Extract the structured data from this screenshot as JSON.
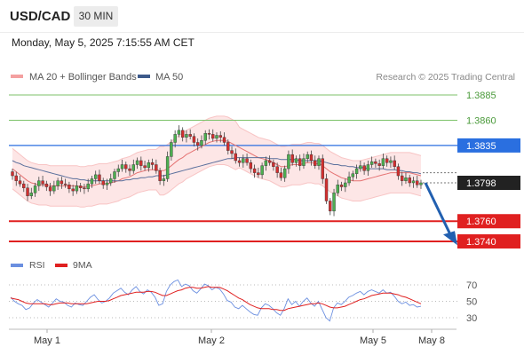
{
  "header": {
    "symbol": "USD/CAD",
    "timeframe": "30 MIN",
    "datetime": "Monday, May 5, 2025 7:15:55 AM CET"
  },
  "colors": {
    "bollinger": "#f4a0a0",
    "bollinger_fill": "#fde6e6",
    "ma20": "#e57373",
    "ma50": "#5a6f9c",
    "resistance_green": "#7dc26a",
    "pivot_blue": "#2a6fe0",
    "support_red": "#e02020",
    "candle_up": "#4caf50",
    "candle_down": "#d32f2f",
    "arrow": "#2260b0",
    "rsi": "#6b8fe0",
    "rsi_ma": "#e02020"
  },
  "chart_data": [
    {
      "type": "candlestick",
      "legend": [
        "MA 20 + Bollinger Bands",
        "MA 50"
      ],
      "watermark": "Research © 2025 Trading Central",
      "x_ticks": [
        "May 1",
        "May 2",
        "May 5",
        "May 8"
      ],
      "current_price": 1.3798,
      "levels": [
        {
          "value": 1.3885,
          "label": "1.3885",
          "kind": "resistance"
        },
        {
          "value": 1.386,
          "label": "1.3860",
          "kind": "resistance"
        },
        {
          "value": 1.3835,
          "label": "1.3835",
          "kind": "pivot"
        },
        {
          "value": 1.376,
          "label": "1.3760",
          "kind": "support"
        },
        {
          "value": 1.374,
          "label": "1.3740",
          "kind": "support"
        }
      ],
      "current_label": "1.3798",
      "forecast": {
        "from": 1.3798,
        "to": 1.3745,
        "direction": "down"
      },
      "y_range": [
        1.3738,
        1.3888
      ],
      "closes": [
        1.3805,
        1.38,
        1.3797,
        1.3793,
        1.3785,
        1.3788,
        1.3795,
        1.38,
        1.3797,
        1.3794,
        1.379,
        1.3795,
        1.38,
        1.3797,
        1.3796,
        1.3792,
        1.379,
        1.3795,
        1.3793,
        1.3792,
        1.3797,
        1.3802,
        1.3806,
        1.38,
        1.3796,
        1.3798,
        1.3802,
        1.3809,
        1.3812,
        1.3816,
        1.3812,
        1.381,
        1.3816,
        1.382,
        1.3815,
        1.3813,
        1.3818,
        1.3816,
        1.381,
        1.38,
        1.3802,
        1.3824,
        1.3838,
        1.3846,
        1.385,
        1.3843,
        1.3846,
        1.3844,
        1.3838,
        1.3835,
        1.384,
        1.3847,
        1.3846,
        1.3842,
        1.3845,
        1.3843,
        1.3838,
        1.383,
        1.3827,
        1.382,
        1.3818,
        1.3822,
        1.3818,
        1.3812,
        1.3808,
        1.3806,
        1.3815,
        1.382,
        1.3818,
        1.3814,
        1.3808,
        1.3803,
        1.3812,
        1.3826,
        1.3818,
        1.3822,
        1.3815,
        1.3822,
        1.3826,
        1.382,
        1.3815,
        1.3822,
        1.3802,
        1.378,
        1.377,
        1.3788,
        1.3796,
        1.3794,
        1.3798,
        1.3804,
        1.3807,
        1.3812,
        1.3815,
        1.381,
        1.3816,
        1.3819,
        1.3817,
        1.3815,
        1.3822,
        1.3818,
        1.382,
        1.3814,
        1.3805,
        1.38,
        1.3803,
        1.3798,
        1.38,
        1.3796,
        1.3798
      ],
      "ma20": [
        1.3812,
        1.3809,
        1.3806,
        1.3803,
        1.38,
        1.3798,
        1.3797,
        1.3796,
        1.3796,
        1.3796,
        1.3795,
        1.3795,
        1.3795,
        1.3795,
        1.3795,
        1.3795,
        1.3795,
        1.3795,
        1.3794,
        1.3794,
        1.3795,
        1.3795,
        1.3796,
        1.3797,
        1.3797,
        1.3797,
        1.3798,
        1.3799,
        1.38,
        1.3802,
        1.3803,
        1.3804,
        1.3806,
        1.3808,
        1.3809,
        1.381,
        1.3811,
        1.3811,
        1.3811,
        1.381,
        1.381,
        1.3812,
        1.3815,
        1.3818,
        1.3821,
        1.3823,
        1.3826,
        1.3828,
        1.383,
        1.3832,
        1.3834,
        1.3836,
        1.3838,
        1.3839,
        1.384,
        1.384,
        1.384,
        1.3839,
        1.3837,
        1.3835,
        1.3833,
        1.3831,
        1.3829,
        1.3827,
        1.3825,
        1.3823,
        1.3822,
        1.3821,
        1.382,
        1.3818,
        1.3816,
        1.3814,
        1.3814,
        1.3815,
        1.3816,
        1.3816,
        1.3816,
        1.3817,
        1.3818,
        1.3818,
        1.3817,
        1.3817,
        1.3815,
        1.3812,
        1.3809,
        1.3807,
        1.3805,
        1.3803,
        1.3802,
        1.3801,
        1.38,
        1.38,
        1.38,
        1.3801,
        1.3802,
        1.3803,
        1.3804,
        1.3805,
        1.3806,
        1.3807,
        1.3808,
        1.3808,
        1.3808,
        1.3808,
        1.3808,
        1.3808,
        1.3807,
        1.3806,
        1.3805
      ],
      "ma50": [
        1.382,
        1.3818,
        1.3817,
        1.3815,
        1.3814,
        1.3813,
        1.3812,
        1.3811,
        1.381,
        1.3809,
        1.3808,
        1.3807,
        1.3806,
        1.3805,
        1.3804,
        1.3803,
        1.3802,
        1.3802,
        1.3801,
        1.3801,
        1.38,
        1.38,
        1.38,
        1.38,
        1.38,
        1.38,
        1.38,
        1.38,
        1.38,
        1.38,
        1.3801,
        1.3801,
        1.3802,
        1.3802,
        1.3803,
        1.3803,
        1.3804,
        1.3804,
        1.3805,
        1.3805,
        1.3805,
        1.3806,
        1.3807,
        1.3808,
        1.3809,
        1.381,
        1.3811,
        1.3812,
        1.3813,
        1.3814,
        1.3815,
        1.3816,
        1.3817,
        1.3818,
        1.3819,
        1.382,
        1.3821,
        1.3822,
        1.3822,
        1.3823,
        1.3823,
        1.3823,
        1.3823,
        1.3823,
        1.3823,
        1.3823,
        1.3823,
        1.3823,
        1.3822,
        1.3822,
        1.3822,
        1.3821,
        1.3821,
        1.3821,
        1.3821,
        1.3821,
        1.382,
        1.382,
        1.382,
        1.382,
        1.382,
        1.382,
        1.3819,
        1.3818,
        1.3817,
        1.3816,
        1.3816,
        1.3815,
        1.3815,
        1.3814,
        1.3814,
        1.3813,
        1.3813,
        1.3813,
        1.3812,
        1.3812,
        1.3812,
        1.3812,
        1.3812,
        1.3811,
        1.3811,
        1.3811,
        1.381,
        1.381,
        1.3809,
        1.3809,
        1.3808,
        1.3808,
        1.3807
      ]
    },
    {
      "type": "line",
      "legend": [
        "RSI",
        "9MA"
      ],
      "y_ticks": [
        70,
        50,
        30
      ],
      "y_range": [
        20,
        80
      ],
      "rsi": [
        55,
        50,
        47,
        45,
        40,
        42,
        48,
        52,
        49,
        46,
        43,
        48,
        53,
        50,
        49,
        45,
        43,
        48,
        46,
        45,
        50,
        55,
        58,
        52,
        48,
        50,
        54,
        60,
        63,
        66,
        61,
        58,
        64,
        68,
        62,
        59,
        64,
        61,
        55,
        45,
        47,
        62,
        70,
        74,
        76,
        68,
        71,
        69,
        63,
        60,
        65,
        71,
        69,
        64,
        67,
        65,
        59,
        51,
        49,
        43,
        41,
        45,
        41,
        37,
        34,
        33,
        42,
        47,
        45,
        41,
        36,
        33,
        41,
        53,
        46,
        50,
        44,
        50,
        54,
        48,
        44,
        50,
        40,
        30,
        26,
        42,
        48,
        46,
        50,
        55,
        57,
        60,
        62,
        58,
        62,
        64,
        62,
        60,
        64,
        60,
        61,
        56,
        50,
        47,
        49,
        45,
        46,
        43,
        44
      ],
      "rsi_ma": [
        54,
        53,
        52,
        50,
        48,
        47,
        47,
        47,
        47,
        47,
        46,
        46,
        47,
        48,
        48,
        48,
        47,
        47,
        47,
        47,
        47,
        48,
        49,
        50,
        50,
        50,
        51,
        53,
        55,
        57,
        58,
        59,
        60,
        61,
        61,
        61,
        62,
        62,
        61,
        59,
        57,
        57,
        59,
        61,
        63,
        64,
        66,
        67,
        67,
        66,
        66,
        67,
        68,
        67,
        67,
        67,
        65,
        63,
        60,
        57,
        54,
        52,
        49,
        46,
        44,
        42,
        41,
        41,
        41,
        40,
        40,
        39,
        39,
        41,
        42,
        43,
        44,
        45,
        46,
        47,
        47,
        48,
        47,
        45,
        43,
        42,
        42,
        43,
        44,
        46,
        48,
        50,
        52,
        53,
        55,
        57,
        58,
        59,
        60,
        60,
        60,
        59,
        58,
        56,
        55,
        53,
        51,
        49,
        47
      ]
    }
  ]
}
